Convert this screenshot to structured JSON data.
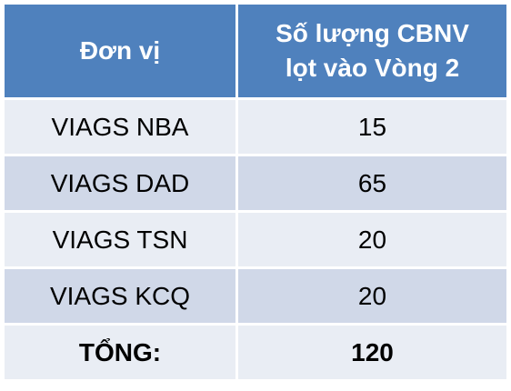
{
  "table": {
    "header": {
      "unit": "Đơn vị",
      "count_lines": [
        "Số lượng CBNV",
        "lọt vào Vòng 2"
      ]
    },
    "rows": [
      [
        "VIAGS NBA",
        15
      ],
      [
        "VIAGS DAD",
        65
      ],
      [
        "VIAGS TSN",
        20
      ],
      [
        "VIAGS KCQ",
        20
      ]
    ],
    "total": {
      "label": "TỔNG:",
      "value": 120
    }
  }
}
